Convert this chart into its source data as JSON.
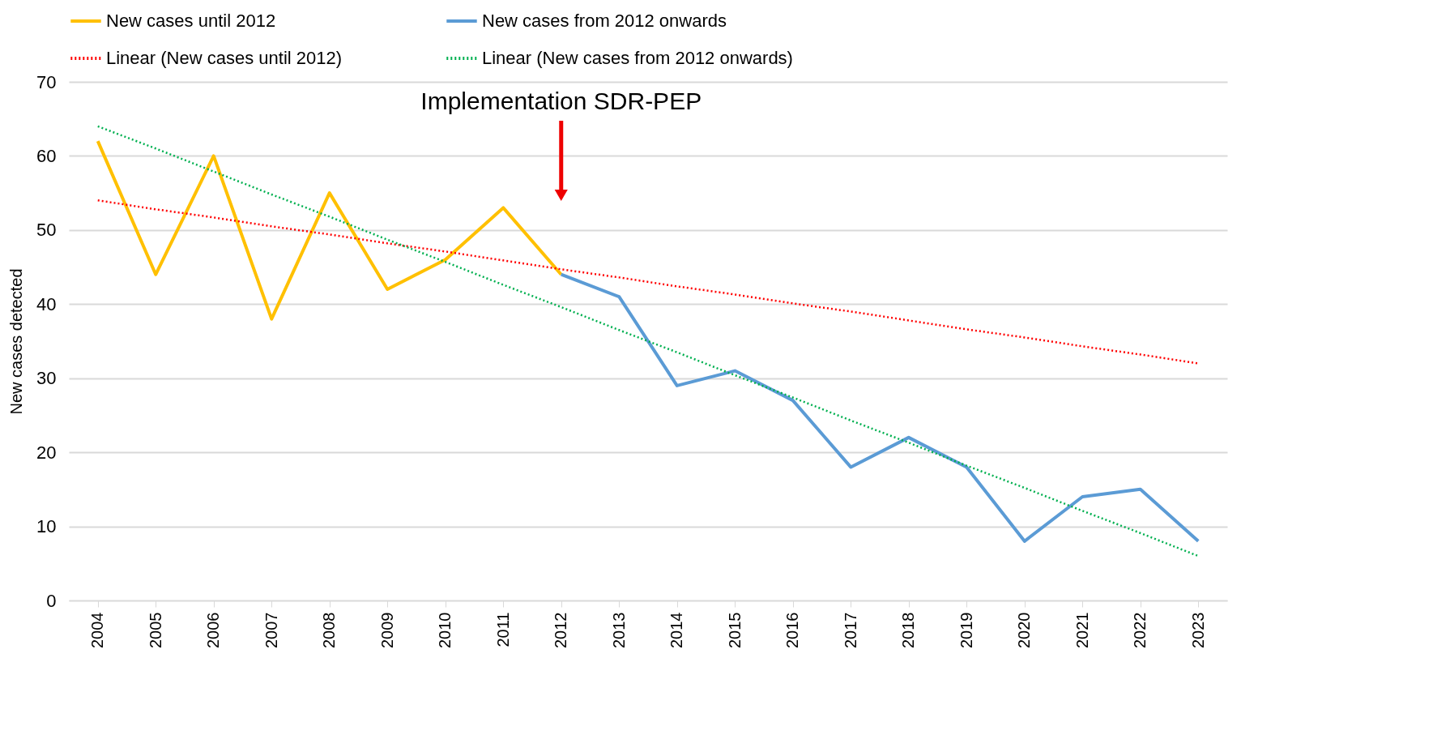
{
  "chart_data": {
    "type": "line",
    "ylabel": "New cases detected",
    "categories": [
      "2004",
      "2005",
      "2006",
      "2007",
      "2008",
      "2009",
      "2010",
      "2011",
      "2012",
      "2013",
      "2014",
      "2015",
      "2016",
      "2017",
      "2018",
      "2019",
      "2020",
      "2021",
      "2022",
      "2023"
    ],
    "series": [
      {
        "name": "New cases until 2012",
        "color": "#ffc000",
        "values": [
          62,
          44,
          60,
          38,
          55,
          42,
          46,
          53,
          44,
          null,
          null,
          null,
          null,
          null,
          null,
          null,
          null,
          null,
          null,
          null
        ]
      },
      {
        "name": "New cases from 2012 onwards",
        "color": "#5b9bd5",
        "values": [
          null,
          null,
          null,
          null,
          null,
          null,
          null,
          null,
          44,
          41,
          29,
          31,
          27,
          18,
          22,
          18,
          8,
          14,
          15,
          8
        ]
      },
      {
        "name": "Linear (New cases until 2012)",
        "color": "#ff0000",
        "line_style": "dotted",
        "values": [
          54,
          52.8,
          51.7,
          50.5,
          49.4,
          48.2,
          47.1,
          45.9,
          44.7,
          43.6,
          42.4,
          41.3,
          40.1,
          39,
          37.8,
          36.6,
          35.5,
          34.3,
          33.2,
          32
        ]
      },
      {
        "name": "Linear (New cases from 2012 onwards)",
        "color": "#00b050",
        "line_style": "dotted",
        "values": [
          64,
          61,
          57.9,
          54.8,
          51.8,
          48.7,
          45.7,
          42.6,
          39.6,
          36.5,
          33.5,
          30.4,
          27.4,
          24.3,
          21.3,
          18.2,
          15.2,
          12.1,
          9.1,
          6
        ]
      }
    ],
    "ylim": [
      0,
      70
    ],
    "yticks": [
      0,
      10,
      20,
      30,
      40,
      50,
      60,
      70
    ],
    "grid": "y",
    "legend": "top",
    "marker": "none",
    "line_style": "solid",
    "annotations": [
      "Implementation SDR-PEP"
    ]
  }
}
